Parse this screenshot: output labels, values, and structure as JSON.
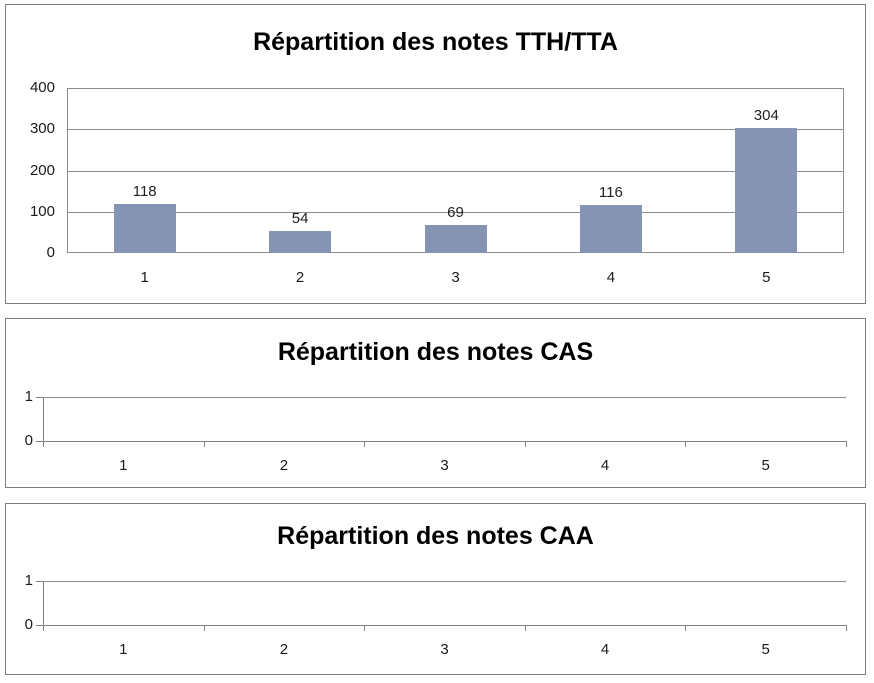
{
  "chart_data": [
    {
      "type": "bar",
      "title": "Répartition des notes TTH/TTA",
      "categories": [
        "1",
        "2",
        "3",
        "4",
        "5"
      ],
      "values": [
        118,
        54,
        69,
        116,
        304
      ],
      "data_labels": [
        "118",
        "54",
        "69",
        "116",
        "304"
      ],
      "y_ticks": [
        "400",
        "300",
        "200",
        "100",
        "0"
      ],
      "ylim": [
        0,
        400
      ],
      "grid": true,
      "legend": "none"
    },
    {
      "type": "bar",
      "title": "Répartition des notes CAS",
      "categories": [
        "1",
        "2",
        "3",
        "4",
        "5"
      ],
      "values": [],
      "data_labels": [],
      "y_ticks": [
        "1",
        "0"
      ],
      "ylim": [
        0,
        1
      ],
      "grid": true,
      "legend": "none"
    },
    {
      "type": "bar",
      "title": "Répartition des notes CAA",
      "categories": [
        "1",
        "2",
        "3",
        "4",
        "5"
      ],
      "values": [],
      "data_labels": [],
      "y_ticks": [
        "1",
        "0"
      ],
      "ylim": [
        0,
        1
      ],
      "grid": true,
      "legend": "none"
    }
  ],
  "colors": {
    "bar": "#8494B2",
    "grid": "#8C8C8C",
    "axis": "#808080",
    "panel_border": "#7F7F7F",
    "text": "#000000"
  }
}
